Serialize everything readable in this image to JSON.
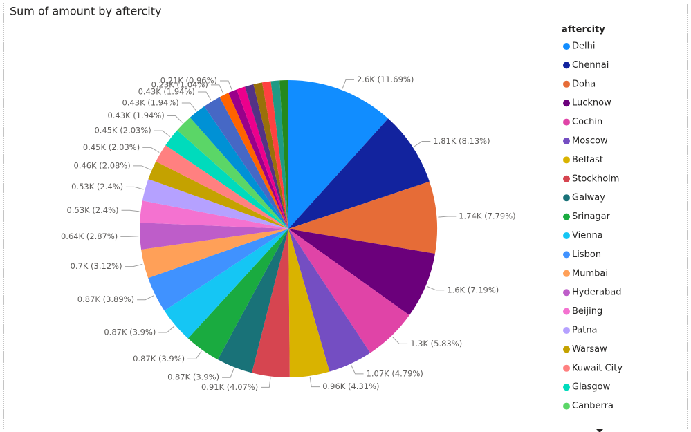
{
  "chart_data": {
    "type": "pie",
    "title": "Sum of amount by aftercity",
    "legend_title": "aftercity",
    "categories": [
      "Delhi",
      "Chennai",
      "Doha",
      "Lucknow",
      "Cochin",
      "Moscow",
      "Belfast",
      "Stockholm",
      "Galway",
      "Srinagar",
      "Vienna",
      "Lisbon",
      "Mumbai",
      "Hyderabad",
      "Beijing",
      "Patna",
      "Warsaw",
      "Kuwait City",
      "Glasgow",
      "Canberra",
      null,
      null,
      null,
      null,
      null,
      null,
      null,
      null,
      null,
      null
    ],
    "values": [
      2600,
      1810,
      1740,
      1600,
      1300,
      1070,
      960,
      910,
      870,
      870,
      870,
      870,
      700,
      640,
      530,
      530,
      460,
      450,
      450,
      430,
      430,
      430,
      230,
      210,
      210,
      210,
      210,
      210,
      210,
      210
    ],
    "value_labels": [
      "2.6K (11.69%)",
      "1.81K (8.13%)",
      "1.74K (7.79%)",
      "1.6K (7.19%)",
      "1.3K (5.83%)",
      "1.07K (4.79%)",
      "0.96K (4.31%)",
      "0.91K (4.07%)",
      "0.87K (3.9%)",
      "0.87K (3.9%)",
      "0.87K (3.9%)",
      "0.87K (3.89%)",
      "0.7K (3.12%)",
      "0.64K (2.87%)",
      "0.53K (2.4%)",
      "0.53K (2.4%)",
      "0.46K (2.08%)",
      "0.45K (2.03%)",
      "0.45K (2.03%)",
      "0.43K (1.94%)",
      "0.43K (1.94%)",
      "0.43K (1.94%)",
      "0.23K (1.04%)",
      "0.21K (0.96%)",
      null,
      null,
      null,
      null,
      null,
      null
    ],
    "colors": [
      "#118DFF",
      "#12239E",
      "#E66C37",
      "#6B007B",
      "#E044A7",
      "#744EC2",
      "#D9B300",
      "#D64550",
      "#197278",
      "#1AAB40",
      "#15C6F4",
      "#4092FF",
      "#FFA058",
      "#BE5DC9",
      "#F472D0",
      "#B5A1FF",
      "#C4A200",
      "#FF8080",
      "#00DBBC",
      "#5BD667",
      "#0091D5",
      "#4668C5",
      "#FF6300",
      "#99008A",
      "#EC008C",
      "#533285",
      "#99700A",
      "#FF4141",
      "#1F9A85",
      "#25891C"
    ]
  }
}
